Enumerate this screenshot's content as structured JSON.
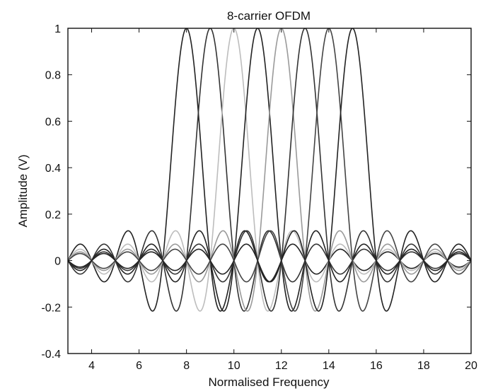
{
  "chart_data": {
    "type": "line",
    "title": "8-carrier OFDM",
    "xlabel": "Normalised Frequency",
    "ylabel": "Amplitude (V)",
    "xlim": [
      3,
      20
    ],
    "ylim": [
      -0.4,
      1
    ],
    "xticks": [
      4,
      6,
      8,
      10,
      12,
      14,
      16,
      18,
      20
    ],
    "yticks": [
      -0.4,
      -0.2,
      0,
      0.2,
      0.4,
      0.6,
      0.8,
      1
    ],
    "xtick_labels": [
      "4",
      "6",
      "8",
      "10",
      "12",
      "14",
      "16",
      "18",
      "20"
    ],
    "ytick_labels": [
      "-0.4",
      "-0.2",
      "0",
      "0.2",
      "0.4",
      "0.6",
      "0.8",
      "1"
    ],
    "grid": false,
    "function": "sinc(x - c)",
    "series": [
      {
        "center": 8,
        "color": "#222222"
      },
      {
        "center": 9,
        "color": "#333333"
      },
      {
        "center": 10,
        "color": "#bdbdbd"
      },
      {
        "center": 11,
        "color": "#222222"
      },
      {
        "center": 12,
        "color": "#9a9a9a"
      },
      {
        "center": 13,
        "color": "#333333"
      },
      {
        "center": 14,
        "color": "#444444"
      },
      {
        "center": 15,
        "color": "#222222"
      }
    ]
  }
}
